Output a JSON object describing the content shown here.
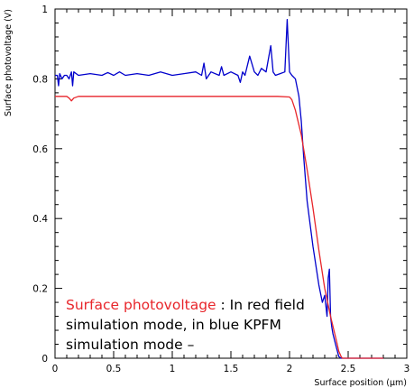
{
  "chart_data": {
    "type": "line",
    "title": "",
    "xlabel": "Surface position (μm)",
    "ylabel": "Surface photovoltage (V)",
    "xlim": [
      0,
      3
    ],
    "ylim": [
      0,
      1
    ],
    "x_ticks": [
      "0",
      "0.5",
      "1",
      "1.5",
      "2",
      "2.5",
      "3"
    ],
    "y_ticks": [
      "0",
      "0.2",
      "0.4",
      "0.6",
      "0.8",
      "1"
    ],
    "grid": false,
    "series": [
      {
        "color": "#0000cc",
        "x": [
          0.0,
          0.02,
          0.03,
          0.04,
          0.06,
          0.08,
          0.1,
          0.12,
          0.14,
          0.15,
          0.16,
          0.2,
          0.3,
          0.4,
          0.45,
          0.5,
          0.55,
          0.6,
          0.7,
          0.8,
          0.9,
          1.0,
          1.1,
          1.2,
          1.25,
          1.27,
          1.29,
          1.33,
          1.4,
          1.42,
          1.44,
          1.5,
          1.56,
          1.58,
          1.6,
          1.62,
          1.66,
          1.7,
          1.73,
          1.76,
          1.8,
          1.84,
          1.86,
          1.88,
          1.92,
          1.96,
          1.98,
          2.0,
          2.02,
          2.05,
          2.08,
          2.1,
          2.12,
          2.15,
          2.2,
          2.25,
          2.28,
          2.3,
          2.32,
          2.33,
          2.34,
          2.35,
          2.36,
          2.37,
          2.4,
          2.42,
          2.44,
          2.45,
          2.46,
          2.48,
          2.5,
          2.6,
          2.7,
          2.8
        ],
        "y": [
          0.81,
          0.81,
          0.78,
          0.815,
          0.8,
          0.81,
          0.81,
          0.8,
          0.82,
          0.78,
          0.82,
          0.81,
          0.815,
          0.81,
          0.818,
          0.81,
          0.82,
          0.81,
          0.815,
          0.81,
          0.82,
          0.81,
          0.815,
          0.82,
          0.81,
          0.845,
          0.8,
          0.82,
          0.81,
          0.835,
          0.81,
          0.82,
          0.81,
          0.79,
          0.82,
          0.81,
          0.865,
          0.82,
          0.81,
          0.83,
          0.82,
          0.895,
          0.82,
          0.81,
          0.815,
          0.82,
          0.97,
          0.82,
          0.81,
          0.8,
          0.75,
          0.68,
          0.58,
          0.45,
          0.32,
          0.21,
          0.16,
          0.18,
          0.12,
          0.23,
          0.255,
          0.12,
          0.09,
          0.07,
          0.03,
          0.005,
          0.0,
          0.0,
          0.0,
          0.0,
          0.0,
          0.0,
          0.0,
          0.0
        ]
      },
      {
        "color": "#e8262b",
        "x": [
          0.0,
          0.1,
          0.12,
          0.14,
          0.16,
          0.2,
          0.5,
          1.0,
          1.5,
          1.9,
          2.0,
          2.02,
          2.05,
          2.1,
          2.15,
          2.2,
          2.25,
          2.3,
          2.35,
          2.4,
          2.42,
          2.44,
          2.45,
          2.46,
          2.5,
          2.8
        ],
        "y": [
          0.75,
          0.75,
          0.745,
          0.737,
          0.745,
          0.75,
          0.75,
          0.75,
          0.75,
          0.75,
          0.748,
          0.74,
          0.71,
          0.64,
          0.54,
          0.43,
          0.31,
          0.2,
          0.12,
          0.05,
          0.02,
          0.005,
          0.0,
          0.0,
          0.0,
          0.0
        ]
      }
    ]
  },
  "annotation": {
    "lead": "Surface photovoltage",
    "rest": " : In red field simulation mode, in blue KPFM simulation mode –"
  }
}
